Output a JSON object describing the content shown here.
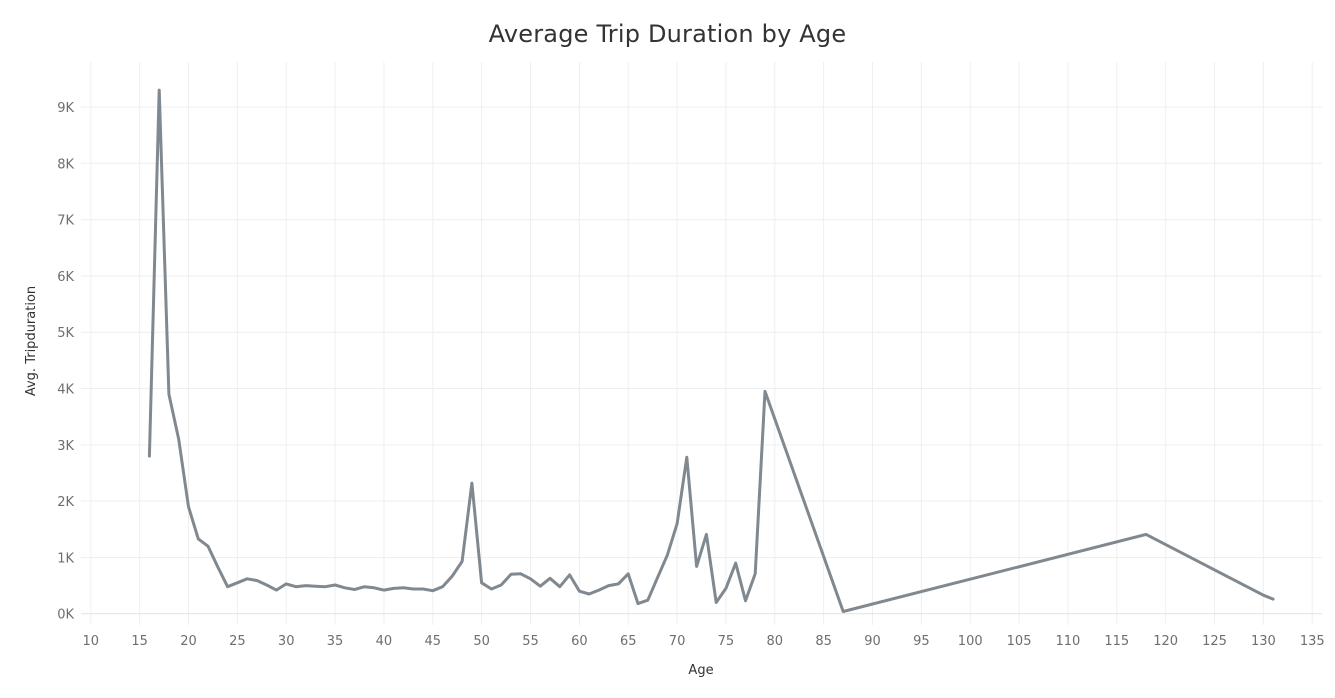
{
  "chart_data": {
    "type": "line",
    "title": "Average Trip Duration by Age",
    "xlabel": "Age",
    "ylabel": "Avg. Tripduration",
    "xlim": [
      9,
      136
    ],
    "ylim": [
      -200,
      9800
    ],
    "x_ticks": [
      10,
      15,
      20,
      25,
      30,
      35,
      40,
      45,
      50,
      55,
      60,
      65,
      70,
      75,
      80,
      85,
      90,
      95,
      100,
      105,
      110,
      115,
      120,
      125,
      130,
      135
    ],
    "y_ticks": [
      0,
      1000,
      2000,
      3000,
      4000,
      5000,
      6000,
      7000,
      8000,
      9000
    ],
    "y_tick_labels": [
      "0K",
      "1K",
      "2K",
      "3K",
      "4K",
      "5K",
      "6K",
      "7K",
      "8K",
      "9K"
    ],
    "grid": true,
    "color": "#808890",
    "series": [
      {
        "name": "Avg. Tripduration",
        "x": [
          16,
          17,
          18,
          19,
          20,
          21,
          22,
          23,
          24,
          25,
          26,
          27,
          28,
          29,
          30,
          31,
          32,
          33,
          34,
          35,
          36,
          37,
          38,
          39,
          40,
          41,
          42,
          43,
          44,
          45,
          46,
          47,
          48,
          49,
          50,
          51,
          52,
          53,
          54,
          55,
          56,
          57,
          58,
          59,
          60,
          61,
          62,
          63,
          64,
          65,
          66,
          67,
          68,
          69,
          70,
          71,
          72,
          73,
          74,
          75,
          76,
          77,
          78,
          79,
          87,
          118,
          130,
          131
        ],
        "values": [
          2800,
          9300,
          3900,
          3100,
          1900,
          1330,
          1200,
          830,
          480,
          550,
          620,
          590,
          510,
          420,
          530,
          480,
          500,
          490,
          480,
          510,
          460,
          430,
          480,
          460,
          420,
          450,
          460,
          440,
          440,
          410,
          480,
          670,
          930,
          2320,
          550,
          440,
          510,
          700,
          710,
          620,
          490,
          630,
          480,
          690,
          400,
          350,
          420,
          500,
          530,
          710,
          180,
          240,
          640,
          1040,
          1600,
          2780,
          840,
          1410,
          200,
          450,
          900,
          230,
          710,
          3950,
          40,
          1410,
          330,
          260
        ]
      }
    ]
  }
}
